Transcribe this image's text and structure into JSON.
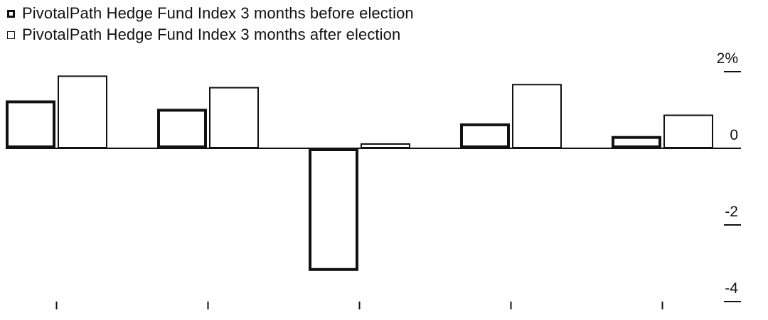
{
  "chart_data": {
    "type": "bar",
    "categories": [
      "",
      "",
      "",
      "",
      ""
    ],
    "series": [
      {
        "name": "PivotalPath Hedge Fund Index 3 months before election",
        "values": [
          1.25,
          1.03,
          -3.2,
          0.65,
          0.32
        ]
      },
      {
        "name": "PivotalPath Hedge Fund Index 3 months after election",
        "values": [
          1.9,
          1.6,
          0.13,
          1.68,
          0.88
        ]
      }
    ],
    "title": "",
    "xlabel": "",
    "ylabel": "",
    "ylim": [
      -4,
      2
    ],
    "y_ticks": [
      2,
      0,
      -2,
      -4
    ],
    "y_tick_labels": [
      "2%",
      "0",
      "-2",
      "-4"
    ],
    "y_axis_side": "right",
    "legend_position": "top-left",
    "grid": false,
    "colors": {
      "before": "#111111",
      "after": "#111111",
      "background": "#ffffff"
    }
  }
}
